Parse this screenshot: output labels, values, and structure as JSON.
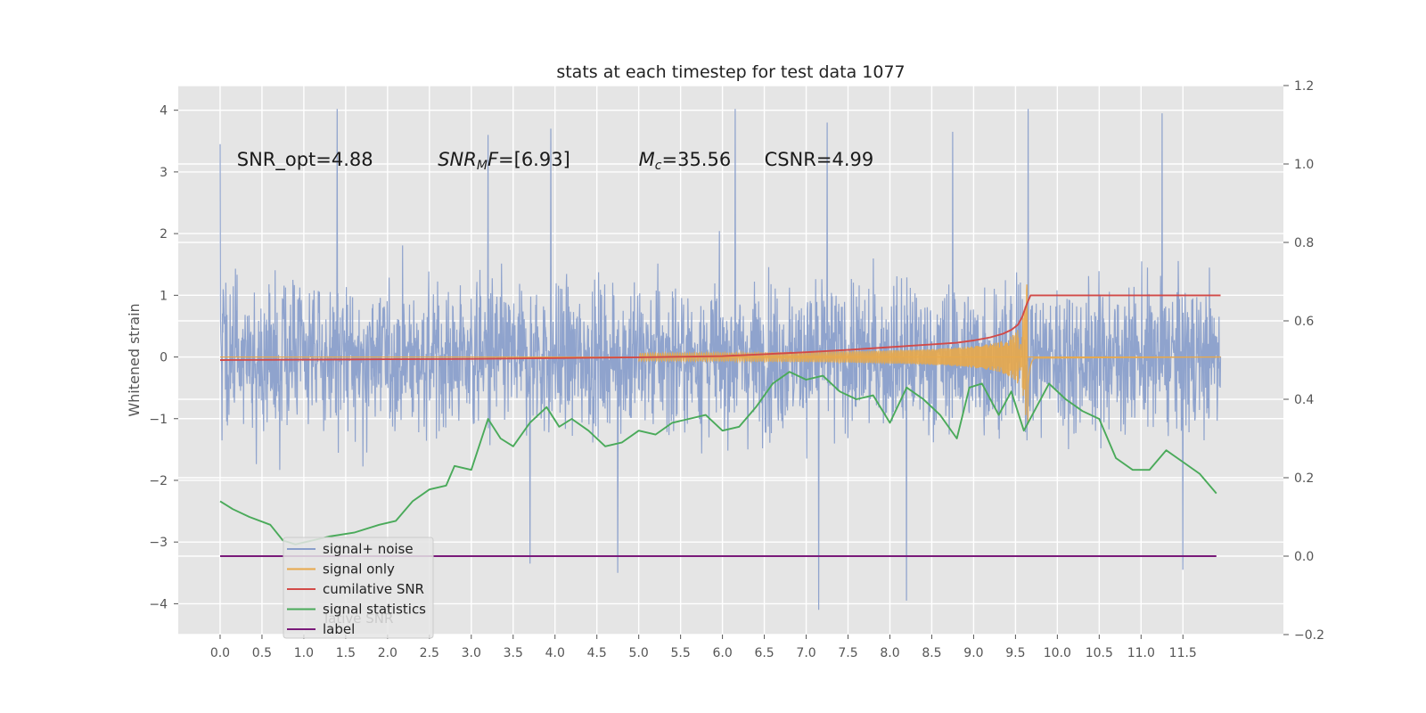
{
  "chart_data": {
    "type": "line",
    "title": "stats at each timestep for test data 1077",
    "ylabel": "Whitened strain",
    "xlim": [
      -0.5,
      12.7
    ],
    "ylim_left": [
      -4.5,
      4.4
    ],
    "ylim_right": [
      -0.2,
      1.2
    ],
    "xticks": [
      0.0,
      0.5,
      1.0,
      1.5,
      2.0,
      2.5,
      3.0,
      3.5,
      4.0,
      4.5,
      5.0,
      5.5,
      6.0,
      6.5,
      7.0,
      7.5,
      8.0,
      8.5,
      9.0,
      9.5,
      10.0,
      10.5,
      11.0,
      11.5
    ],
    "xtick_labels": [
      "0.0",
      "0.5",
      "1.0",
      "1.5",
      "2.0",
      "2.5",
      "3.0",
      "3.5",
      "4.0",
      "4.5",
      "5.0",
      "5.5",
      "6.0",
      "6.5",
      "7.0",
      "7.5",
      "8.0",
      "8.5",
      "9.0",
      "9.5",
      "10.0",
      "10.5",
      "11.0",
      "11.5"
    ],
    "yticks_left": [
      4,
      3,
      2,
      1,
      0,
      -1,
      -2,
      -3,
      -4
    ],
    "ytick_labels_left": [
      "4",
      "3",
      "2",
      "1",
      "0",
      "−1",
      "−2",
      "−3",
      "−4"
    ],
    "yticks_right": [
      1.2,
      1.0,
      0.8,
      0.6,
      0.4,
      0.2,
      0.0,
      -0.2
    ],
    "ytick_labels_right": [
      "1.2",
      "1.0",
      "0.8",
      "0.6",
      "0.4",
      "0.2",
      "0.0",
      "−0.2"
    ],
    "grid": true,
    "legend_position": "lower-left",
    "annotations": [
      {
        "x": 0.2,
        "y": 3.2,
        "parts": [
          {
            "t": "SNR_opt=4.88",
            "s": "normal"
          }
        ]
      },
      {
        "x": 2.6,
        "y": 3.2,
        "parts": [
          {
            "t": "SNR",
            "s": "italic"
          },
          {
            "t": "M",
            "s": "italic-sub"
          },
          {
            "t": "F",
            "s": "italic"
          },
          {
            "t": "=[6.93]",
            "s": "normal"
          }
        ]
      },
      {
        "x": 5.0,
        "y": 3.2,
        "parts": [
          {
            "t": "M",
            "s": "italic"
          },
          {
            "t": "c",
            "s": "italic-sub"
          },
          {
            "t": "=35.56",
            "s": "normal"
          }
        ]
      },
      {
        "x": 6.5,
        "y": 3.2,
        "parts": [
          {
            "t": "CSNR=4.99",
            "s": "normal"
          }
        ]
      }
    ],
    "series": [
      {
        "name": "signal+ noise",
        "color": "#8a9fcb",
        "axis": "left",
        "style": "noise",
        "x_start": 0.0,
        "x_end": 11.95,
        "typical_range": [
          -2.4,
          2.4
        ],
        "spikes": [
          {
            "x": 0.0,
            "y": 3.45
          },
          {
            "x": 1.4,
            "y": 4.02
          },
          {
            "x": 3.2,
            "y": 3.6
          },
          {
            "x": 3.95,
            "y": 3.7
          },
          {
            "x": 6.15,
            "y": 4.02
          },
          {
            "x": 7.25,
            "y": 3.8
          },
          {
            "x": 8.75,
            "y": 3.65
          },
          {
            "x": 9.65,
            "y": 4.02
          },
          {
            "x": 11.25,
            "y": 3.95
          },
          {
            "x": 3.7,
            "y": -3.35
          },
          {
            "x": 4.75,
            "y": -3.5
          },
          {
            "x": 7.15,
            "y": -4.1
          },
          {
            "x": 8.2,
            "y": -3.95
          },
          {
            "x": 11.5,
            "y": -3.45
          }
        ]
      },
      {
        "name": "signal only",
        "color": "#e8a84a",
        "axis": "left",
        "style": "chirp",
        "merger_x": 9.65,
        "peak_amplitude": 1.2
      },
      {
        "name": "cumilative SNR",
        "color": "#d24a48",
        "axis": "right",
        "x": [
          0.0,
          1.0,
          2.0,
          3.0,
          4.0,
          5.0,
          6.0,
          6.5,
          7.0,
          7.5,
          8.0,
          8.5,
          8.8,
          9.0,
          9.2,
          9.35,
          9.45,
          9.53,
          9.58,
          9.63,
          9.68,
          11.95
        ],
        "y": [
          0.5,
          0.501,
          0.502,
          0.503,
          0.505,
          0.507,
          0.51,
          0.515,
          0.52,
          0.526,
          0.533,
          0.54,
          0.544,
          0.55,
          0.558,
          0.567,
          0.577,
          0.59,
          0.61,
          0.64,
          0.665,
          0.665
        ]
      },
      {
        "name": "signal statistics",
        "color": "#4aaa5a",
        "axis": "right",
        "x": [
          0.0,
          0.15,
          0.35,
          0.6,
          0.75,
          0.9,
          1.1,
          1.3,
          1.6,
          1.9,
          2.1,
          2.3,
          2.5,
          2.7,
          2.8,
          3.0,
          3.2,
          3.35,
          3.5,
          3.7,
          3.9,
          4.05,
          4.2,
          4.4,
          4.6,
          4.8,
          5.0,
          5.2,
          5.4,
          5.6,
          5.8,
          6.0,
          6.2,
          6.4,
          6.6,
          6.8,
          7.0,
          7.2,
          7.4,
          7.6,
          7.8,
          8.0,
          8.2,
          8.4,
          8.6,
          8.8,
          8.95,
          9.1,
          9.3,
          9.45,
          9.6,
          9.75,
          9.9,
          10.1,
          10.3,
          10.5,
          10.7,
          10.9,
          11.1,
          11.3,
          11.5,
          11.7,
          11.9
        ],
        "y": [
          0.14,
          0.12,
          0.1,
          0.08,
          0.04,
          0.03,
          0.04,
          0.05,
          0.06,
          0.08,
          0.09,
          0.14,
          0.17,
          0.18,
          0.23,
          0.22,
          0.35,
          0.3,
          0.28,
          0.34,
          0.38,
          0.33,
          0.35,
          0.32,
          0.28,
          0.29,
          0.32,
          0.31,
          0.34,
          0.35,
          0.36,
          0.32,
          0.33,
          0.38,
          0.44,
          0.47,
          0.45,
          0.46,
          0.42,
          0.4,
          0.41,
          0.34,
          0.43,
          0.4,
          0.36,
          0.3,
          0.43,
          0.44,
          0.36,
          0.42,
          0.32,
          0.38,
          0.44,
          0.4,
          0.37,
          0.35,
          0.25,
          0.22,
          0.22,
          0.27,
          0.24,
          0.21,
          0.16
        ]
      },
      {
        "name": "label",
        "color": "#7a1a7a",
        "axis": "right",
        "x": [
          0.0,
          11.9
        ],
        "y": [
          0.0,
          0.0
        ]
      }
    ],
    "legend": {
      "entries": [
        "signal+ noise",
        "signal only",
        "cumilative SNR",
        "signal statistics",
        "label"
      ],
      "ghost_text": "lative SNR"
    }
  }
}
